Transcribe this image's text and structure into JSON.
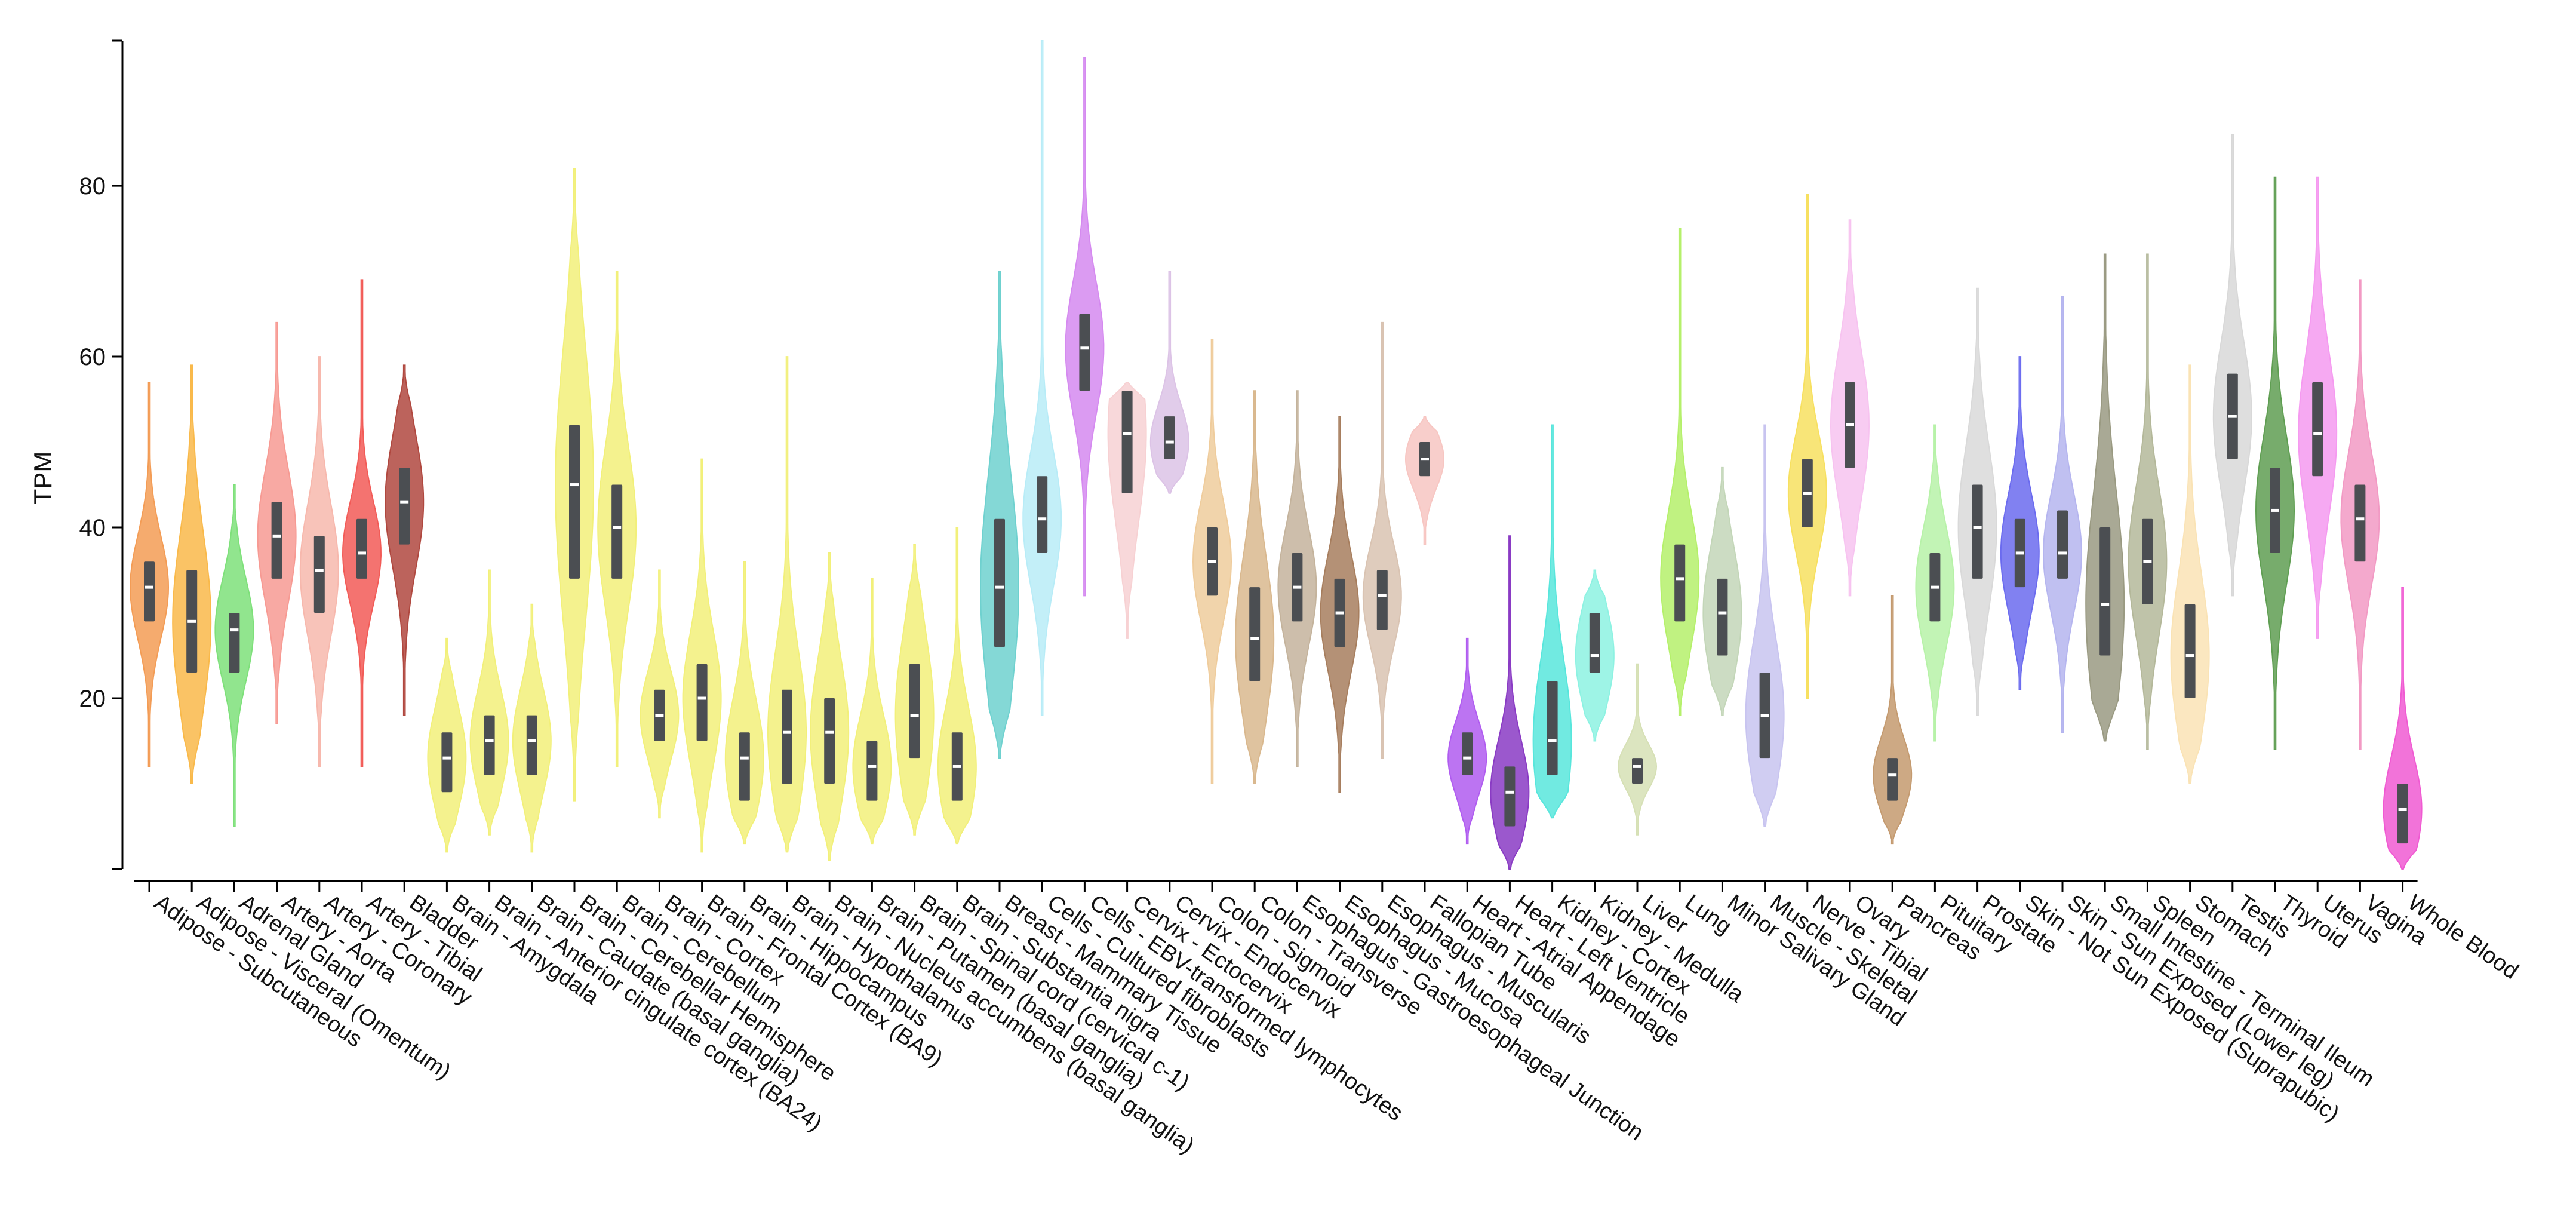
{
  "chart_data": {
    "type": "violin",
    "title": "",
    "xlabel": "",
    "ylabel": "TPM",
    "ylim": [
      0,
      97
    ],
    "yticks": [
      20,
      40,
      60,
      80
    ],
    "grid": false,
    "series": [
      {
        "name": "Adipose - Subcutaneous",
        "color": "#f39c55",
        "min": 12,
        "q1": 29,
        "median": 33,
        "q3": 36,
        "max": 57
      },
      {
        "name": "Adipose - Visceral (Omentum)",
        "color": "#f9b94a",
        "min": 10,
        "q1": 23,
        "median": 29,
        "q3": 35,
        "max": 59
      },
      {
        "name": "Adrenal Gland",
        "color": "#7ee07a",
        "min": 5,
        "q1": 23,
        "median": 28,
        "q3": 30,
        "max": 45
      },
      {
        "name": "Artery - Aorta",
        "color": "#f79a93",
        "min": 17,
        "q1": 34,
        "median": 39,
        "q3": 43,
        "max": 64
      },
      {
        "name": "Artery - Coronary",
        "color": "#f7b8ad",
        "min": 12,
        "q1": 30,
        "median": 35,
        "q3": 39,
        "max": 60
      },
      {
        "name": "Artery - Tibial",
        "color": "#f25b57",
        "min": 12,
        "q1": 34,
        "median": 37,
        "q3": 41,
        "max": 69
      },
      {
        "name": "Bladder",
        "color": "#b0483f",
        "min": 18,
        "q1": 38,
        "median": 43,
        "q3": 47,
        "max": 59
      },
      {
        "name": "Brain - Amygdala",
        "color": "#f2f07a",
        "min": 2,
        "q1": 9,
        "median": 13,
        "q3": 16,
        "max": 27
      },
      {
        "name": "Brain - Anterior cingulate cortex (BA24)",
        "color": "#f2f07a",
        "min": 4,
        "q1": 11,
        "median": 15,
        "q3": 18,
        "max": 35
      },
      {
        "name": "Brain - Caudate (basal ganglia)",
        "color": "#f2f07a",
        "min": 2,
        "q1": 11,
        "median": 15,
        "q3": 18,
        "max": 31
      },
      {
        "name": "Brain - Cerebellar Hemisphere",
        "color": "#f2f07a",
        "min": 8,
        "q1": 34,
        "median": 45,
        "q3": 52,
        "max": 82
      },
      {
        "name": "Brain - Cerebellum",
        "color": "#f2f07a",
        "min": 12,
        "q1": 34,
        "median": 40,
        "q3": 45,
        "max": 70
      },
      {
        "name": "Brain - Cortex",
        "color": "#f2f07a",
        "min": 6,
        "q1": 15,
        "median": 18,
        "q3": 21,
        "max": 35
      },
      {
        "name": "Brain - Frontal Cortex (BA9)",
        "color": "#f2f07a",
        "min": 2,
        "q1": 15,
        "median": 20,
        "q3": 24,
        "max": 48
      },
      {
        "name": "Brain - Hippocampus",
        "color": "#f2f07a",
        "min": 3,
        "q1": 8,
        "median": 13,
        "q3": 16,
        "max": 36
      },
      {
        "name": "Brain - Hypothalamus",
        "color": "#f2f07a",
        "min": 2,
        "q1": 10,
        "median": 16,
        "q3": 21,
        "max": 60
      },
      {
        "name": "Brain - Nucleus accumbens (basal ganglia)",
        "color": "#f2f07a",
        "min": 1,
        "q1": 10,
        "median": 16,
        "q3": 20,
        "max": 37
      },
      {
        "name": "Brain - Putamen (basal ganglia)",
        "color": "#f2f07a",
        "min": 3,
        "q1": 8,
        "median": 12,
        "q3": 15,
        "max": 34
      },
      {
        "name": "Brain - Spinal cord (cervical c-1)",
        "color": "#f2f07a",
        "min": 4,
        "q1": 13,
        "median": 18,
        "q3": 24,
        "max": 38
      },
      {
        "name": "Brain - Substantia nigra",
        "color": "#f2f07a",
        "min": 3,
        "q1": 8,
        "median": 12,
        "q3": 16,
        "max": 40
      },
      {
        "name": "Breast - Mammary Tissue",
        "color": "#6fd1cf",
        "min": 13,
        "q1": 26,
        "median": 33,
        "q3": 41,
        "max": 70
      },
      {
        "name": "Cells - Cultured fibroblasts",
        "color": "#b8ecf7",
        "min": 18,
        "q1": 37,
        "median": 41,
        "q3": 46,
        "max": 97
      },
      {
        "name": "Cells - EBV-transformed lymphocytes",
        "color": "#d58af0",
        "min": 32,
        "q1": 56,
        "median": 61,
        "q3": 65,
        "max": 95
      },
      {
        "name": "Cervix - Ectocervix",
        "color": "#f7d1d3",
        "min": 27,
        "q1": 44,
        "median": 51,
        "q3": 56,
        "max": 57
      },
      {
        "name": "Cervix - Endocervix",
        "color": "#dcc3e6",
        "min": 44,
        "q1": 48,
        "median": 50,
        "q3": 53,
        "max": 70
      },
      {
        "name": "Colon - Sigmoid",
        "color": "#efcc9c",
        "min": 10,
        "q1": 32,
        "median": 36,
        "q3": 40,
        "max": 62
      },
      {
        "name": "Colon - Transverse",
        "color": "#d9b88e",
        "min": 10,
        "q1": 22,
        "median": 27,
        "q3": 33,
        "max": 56
      },
      {
        "name": "Esophagus - Gastroesophageal Junction",
        "color": "#c4b39c",
        "min": 12,
        "q1": 29,
        "median": 33,
        "q3": 37,
        "max": 56
      },
      {
        "name": "Esophagus - Mucosa",
        "color": "#a77e5e",
        "min": 9,
        "q1": 26,
        "median": 30,
        "q3": 34,
        "max": 53
      },
      {
        "name": "Esophagus - Muscularis",
        "color": "#d9c3b2",
        "min": 13,
        "q1": 28,
        "median": 32,
        "q3": 35,
        "max": 64
      },
      {
        "name": "Fallopian Tube",
        "color": "#f7c6c2",
        "min": 38,
        "q1": 46,
        "median": 48,
        "q3": 50,
        "max": 53
      },
      {
        "name": "Heart - Atrial Appendage",
        "color": "#b05cf0",
        "min": 3,
        "q1": 11,
        "median": 13,
        "q3": 16,
        "max": 27
      },
      {
        "name": "Heart - Left Ventricle",
        "color": "#8a3bc4",
        "min": 0,
        "q1": 5,
        "median": 9,
        "q3": 12,
        "max": 39
      },
      {
        "name": "Kidney - Cortex",
        "color": "#58e6dc",
        "min": 6,
        "q1": 11,
        "median": 15,
        "q3": 22,
        "max": 52
      },
      {
        "name": "Kidney - Medulla",
        "color": "#8df2e2",
        "min": 15,
        "q1": 23,
        "median": 25,
        "q3": 30,
        "max": 35
      },
      {
        "name": "Liver",
        "color": "#d6e0b5",
        "min": 4,
        "q1": 10,
        "median": 12,
        "q3": 13,
        "max": 24
      },
      {
        "name": "Lung",
        "color": "#b5f06b",
        "min": 18,
        "q1": 29,
        "median": 34,
        "q3": 38,
        "max": 75
      },
      {
        "name": "Minor Salivary Gland",
        "color": "#c3d6b8",
        "min": 18,
        "q1": 25,
        "median": 30,
        "q3": 34,
        "max": 47
      },
      {
        "name": "Muscle - Skeletal",
        "color": "#c8c4f0",
        "min": 5,
        "q1": 13,
        "median": 18,
        "q3": 23,
        "max": 52
      },
      {
        "name": "Nerve - Tibial",
        "color": "#f7e060",
        "min": 20,
        "q1": 40,
        "median": 44,
        "q3": 48,
        "max": 79
      },
      {
        "name": "Ovary",
        "color": "#f7c3f0",
        "min": 32,
        "q1": 47,
        "median": 52,
        "q3": 57,
        "max": 76
      },
      {
        "name": "Pancreas",
        "color": "#c49a6f",
        "min": 3,
        "q1": 8,
        "median": 11,
        "q3": 13,
        "max": 32
      },
      {
        "name": "Pituitary",
        "color": "#b7f2a8",
        "min": 15,
        "q1": 29,
        "median": 33,
        "q3": 37,
        "max": 52
      },
      {
        "name": "Prostate",
        "color": "#d9d9d9",
        "min": 18,
        "q1": 34,
        "median": 40,
        "q3": 45,
        "max": 68
      },
      {
        "name": "Skin - Not Sun Exposed (Suprapubic)",
        "color": "#6b6bef",
        "min": 21,
        "q1": 33,
        "median": 37,
        "q3": 41,
        "max": 60
      },
      {
        "name": "Skin - Sun Exposed (Lower leg)",
        "color": "#b5b5ef",
        "min": 16,
        "q1": 34,
        "median": 37,
        "q3": 42,
        "max": 67
      },
      {
        "name": "Small Intestine - Terminal Ileum",
        "color": "#9a9a82",
        "min": 15,
        "q1": 25,
        "median": 31,
        "q3": 40,
        "max": 72
      },
      {
        "name": "Spleen",
        "color": "#b4b89a",
        "min": 14,
        "q1": 31,
        "median": 36,
        "q3": 41,
        "max": 72
      },
      {
        "name": "Stomach",
        "color": "#fae3b5",
        "min": 10,
        "q1": 20,
        "median": 25,
        "q3": 31,
        "max": 59
      },
      {
        "name": "Testis",
        "color": "#d8d8d8",
        "min": 32,
        "q1": 48,
        "median": 53,
        "q3": 58,
        "max": 86
      },
      {
        "name": "Thyroid",
        "color": "#5f9e52",
        "min": 14,
        "q1": 37,
        "median": 42,
        "q3": 47,
        "max": 81
      },
      {
        "name": "Uterus",
        "color": "#f59af0",
        "min": 27,
        "q1": 46,
        "median": 51,
        "q3": 57,
        "max": 81
      },
      {
        "name": "Vagina",
        "color": "#f29ac4",
        "min": 14,
        "q1": 36,
        "median": 41,
        "q3": 45,
        "max": 69
      },
      {
        "name": "Whole Blood",
        "color": "#f05ad2",
        "min": 0,
        "q1": 3,
        "median": 7,
        "q3": 10,
        "max": 33
      }
    ]
  }
}
